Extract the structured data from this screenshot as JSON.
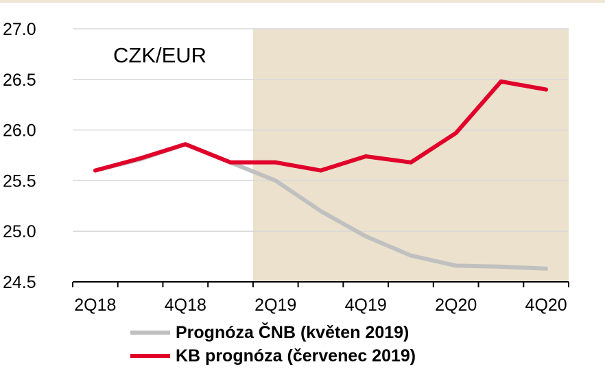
{
  "chart_data": {
    "type": "line",
    "title": "",
    "annotation": "CZK/EUR",
    "xlabel": "",
    "ylabel": "",
    "ylim": [
      24.5,
      27.0
    ],
    "yticks": [
      "27.0",
      "26.5",
      "26.0",
      "25.5",
      "25.0",
      "24.5"
    ],
    "xtick_labels": [
      "2Q18",
      "4Q18",
      "2Q19",
      "4Q19",
      "2Q20",
      "4Q20"
    ],
    "x": [
      "2Q18",
      "3Q18",
      "4Q18",
      "1Q19",
      "2Q19",
      "3Q19",
      "4Q19",
      "1Q20",
      "2Q20",
      "3Q20",
      "4Q20"
    ],
    "forecast_shading_from": "2Q19",
    "shading_color": "#ebe1cd",
    "grid": true,
    "legend_position": "bottom",
    "series": [
      {
        "name": "Prognóza ČNB (květen 2019)",
        "color": "#c0c0c0",
        "values": [
          25.6,
          25.71,
          25.86,
          25.68,
          25.5,
          25.2,
          24.95,
          24.76,
          24.66,
          24.65,
          24.63
        ]
      },
      {
        "name": "KB prognóza (červenec 2019)",
        "color": "#e0002a",
        "values": [
          25.6,
          25.72,
          25.86,
          25.68,
          25.68,
          25.6,
          25.74,
          25.68,
          25.97,
          26.48,
          26.4
        ]
      }
    ]
  }
}
